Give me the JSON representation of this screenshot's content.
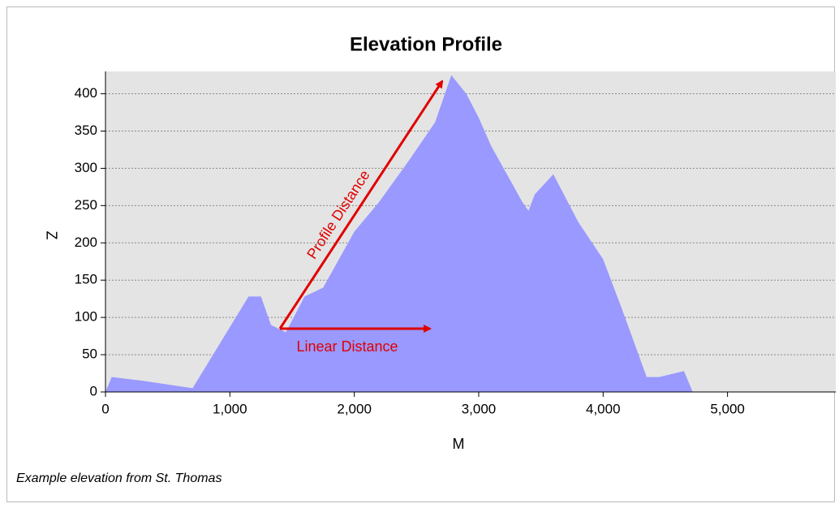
{
  "chart_data": {
    "type": "area",
    "title": "Elevation Profile",
    "x_label": "M",
    "y_label": "Z",
    "x": [
      0,
      50,
      300,
      700,
      1150,
      1250,
      1330,
      1450,
      1600,
      1750,
      2000,
      2200,
      2450,
      2650,
      2780,
      2900,
      3000,
      3100,
      3350,
      3400,
      3450,
      3600,
      3800,
      4000,
      4150,
      4350,
      4450,
      4650,
      4720
    ],
    "values": [
      0,
      20,
      15,
      5,
      128,
      128,
      90,
      80,
      128,
      140,
      215,
      255,
      313,
      362,
      425,
      400,
      368,
      330,
      255,
      243,
      265,
      292,
      228,
      178,
      112,
      20,
      20,
      28,
      0
    ],
    "color": "#9999ff",
    "xlim": [
      0,
      5870
    ],
    "ylim": [
      0,
      430
    ],
    "xticks": [
      0,
      {
        "value": 1000,
        "label": "1,000"
      },
      {
        "value": 2000,
        "label": "2,000"
      },
      {
        "value": 3000,
        "label": "3,000"
      },
      {
        "value": 4000,
        "label": "4,000"
      },
      {
        "value": 5000,
        "label": "5,000"
      }
    ],
    "yticks": [
      0,
      50,
      100,
      150,
      200,
      250,
      300,
      350,
      400
    ],
    "grid": true,
    "annotations": [
      "Profile Distance",
      "Linear Distance"
    ],
    "caption": "Example elevation from St. Thomas"
  }
}
